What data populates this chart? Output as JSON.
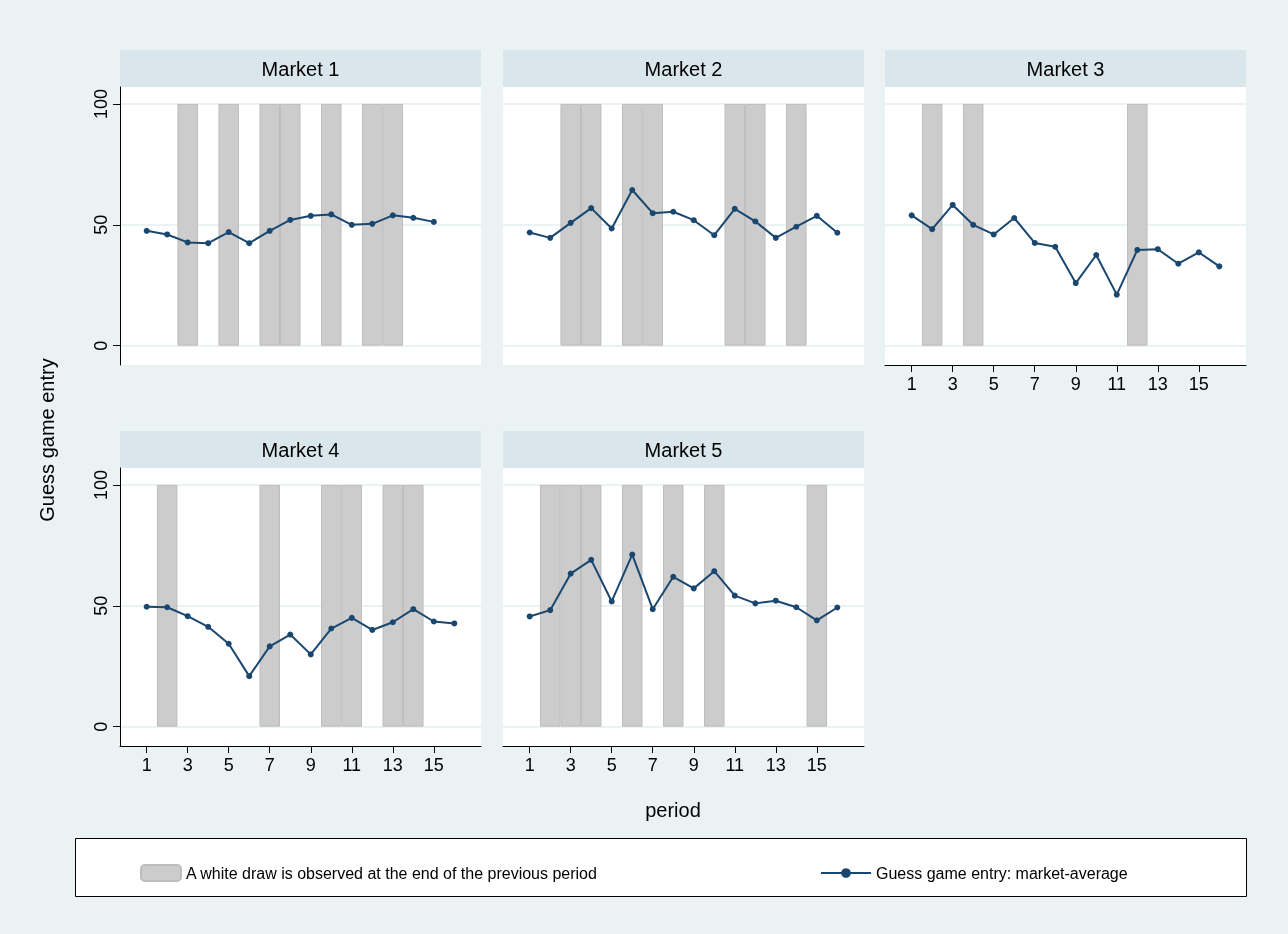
{
  "chart_data": [
    {
      "type": "line",
      "title": "Market 1",
      "xlim": [
        -0.3,
        17.3
      ],
      "xticks": [
        1,
        3,
        5,
        7,
        9,
        11,
        13,
        15
      ],
      "ylim": [
        -8,
        107
      ],
      "yticks": [
        0,
        50,
        100
      ],
      "grid": "y",
      "marker": "circle",
      "tick_labels": "y",
      "series": [
        {
          "type": "bar",
          "color": "#cccccc",
          "x": [
            3,
            5,
            7,
            8,
            10,
            12,
            13
          ],
          "values": [
            100,
            100,
            100,
            100,
            100,
            100,
            100
          ]
        },
        {
          "color": "#1a476f",
          "x": [
            1,
            2,
            3,
            4,
            5,
            6,
            7,
            8,
            9,
            10,
            11,
            12,
            13,
            14,
            15
          ],
          "values": [
            47.5,
            46,
            42.7,
            42.4,
            47,
            42.4,
            47.5,
            52,
            53.7,
            54.3,
            50,
            50.4,
            53.9,
            52.9,
            51.2
          ]
        }
      ]
    },
    {
      "type": "line",
      "title": "Market 2",
      "xlim": [
        -0.3,
        17.3
      ],
      "xticks": [
        1,
        3,
        5,
        7,
        9,
        11,
        13,
        15
      ],
      "ylim": [
        -8,
        107
      ],
      "yticks": [
        0,
        50,
        100
      ],
      "grid": "y",
      "marker": "circle",
      "tick_labels": false,
      "series": [
        {
          "type": "bar",
          "color": "#cccccc",
          "x": [
            3,
            4,
            6,
            7,
            11,
            12,
            14
          ],
          "values": [
            100,
            100,
            100,
            100,
            100,
            100,
            100
          ]
        },
        {
          "color": "#1a476f",
          "x": [
            1,
            2,
            3,
            4,
            5,
            6,
            7,
            8,
            9,
            10,
            11,
            12,
            13,
            14,
            15,
            16
          ],
          "values": [
            46.8,
            44.6,
            50.8,
            56.9,
            48.5,
            64.4,
            54.8,
            55.4,
            51.9,
            45.7,
            56.6,
            51.4,
            44.6,
            49.2,
            53.7,
            46.7
          ]
        }
      ]
    },
    {
      "type": "line",
      "title": "Market 3",
      "xlim": [
        -0.3,
        17.3
      ],
      "xticks": [
        1,
        3,
        5,
        7,
        9,
        11,
        13,
        15
      ],
      "ylim": [
        -8,
        107
      ],
      "yticks": [
        0,
        50,
        100
      ],
      "grid": "y",
      "marker": "circle",
      "tick_labels": "x",
      "series": [
        {
          "type": "bar",
          "color": "#cccccc",
          "x": [
            2,
            4,
            12
          ],
          "values": [
            100,
            100,
            100
          ]
        },
        {
          "color": "#1a476f",
          "x": [
            1,
            2,
            3,
            4,
            5,
            6,
            7,
            8,
            9,
            10,
            11,
            12,
            13,
            14,
            15,
            16
          ],
          "values": [
            53.9,
            48.2,
            58.2,
            50,
            46,
            52.8,
            42.5,
            40.9,
            25.9,
            37.5,
            21.1,
            39.6,
            39.9,
            33.9,
            38.6,
            32.8
          ]
        }
      ]
    },
    {
      "type": "line",
      "title": "Market 4",
      "ylabel": "Guess game entry",
      "xlim": [
        -0.3,
        17.3
      ],
      "xticks": [
        1,
        3,
        5,
        7,
        9,
        11,
        13,
        15
      ],
      "ylim": [
        -8,
        107
      ],
      "yticks": [
        0,
        50,
        100
      ],
      "grid": "y",
      "marker": "circle",
      "series": [
        {
          "type": "bar",
          "color": "#cccccc",
          "x": [
            2,
            7,
            10,
            11,
            13,
            14
          ],
          "values": [
            100,
            100,
            100,
            100,
            100,
            100
          ]
        },
        {
          "color": "#1a476f",
          "x": [
            1,
            2,
            3,
            4,
            5,
            6,
            7,
            8,
            9,
            10,
            11,
            12,
            13,
            14,
            15,
            16
          ],
          "values": [
            49.6,
            49.4,
            45.7,
            41.3,
            34.3,
            20.9,
            33.2,
            38.1,
            29.9,
            40.6,
            45,
            40,
            43.2,
            48.6,
            43.5,
            42.7
          ]
        }
      ]
    },
    {
      "type": "line",
      "title": "Market 5",
      "xlabel": "period",
      "legend": "bottom",
      "xlim": [
        -0.3,
        17.3
      ],
      "xticks": [
        1,
        3,
        5,
        7,
        9,
        11,
        13,
        15
      ],
      "ylim": [
        -8,
        107
      ],
      "yticks": [
        0,
        50,
        100
      ],
      "grid": "y",
      "marker": "circle",
      "tick_labels": "x",
      "series": [
        {
          "name": "A white draw is observed at the end of the previous period",
          "type": "bar",
          "color": "#cccccc",
          "x": [
            2,
            3,
            4,
            6,
            8,
            10,
            15
          ],
          "values": [
            100,
            100,
            100,
            100,
            100,
            100,
            100
          ]
        },
        {
          "name": "Guess game entry: market-average",
          "color": "#1a476f",
          "x": [
            1,
            2,
            3,
            4,
            5,
            6,
            7,
            8,
            9,
            10,
            11,
            12,
            13,
            14,
            15,
            16
          ],
          "values": [
            45.6,
            48.2,
            63.3,
            69,
            51.8,
            71.2,
            48.6,
            62,
            57.2,
            64.3,
            54.2,
            51,
            52.1,
            49.4,
            44,
            49.3
          ]
        }
      ]
    }
  ]
}
